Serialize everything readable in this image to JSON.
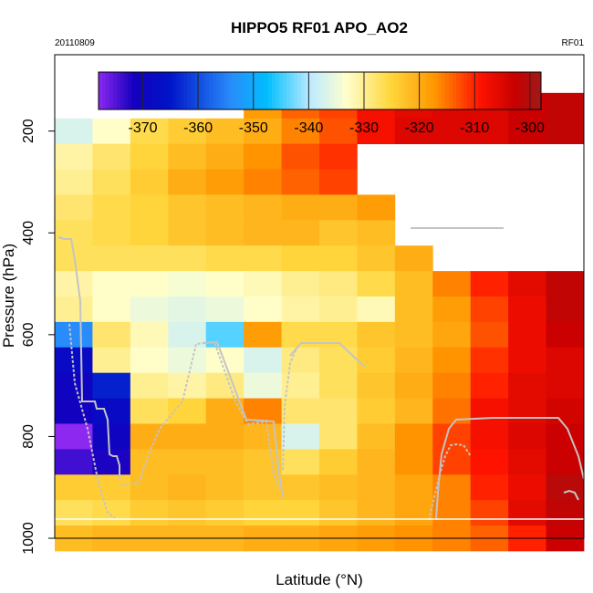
{
  "chart_data": {
    "type": "heatmap",
    "title": "HIPPO5 RF01 APO_AO2",
    "left_note": "20110809",
    "right_note": "RF01",
    "xlabel": "Latitude (°N)",
    "ylabel": "Pressure (hPa)",
    "ylim": [
      1000,
      50
    ],
    "yticks": [
      200,
      400,
      600,
      800,
      1000
    ],
    "colorbar": {
      "range": [
        -378,
        -298
      ],
      "ticks": [
        -370,
        -360,
        -350,
        -340,
        -330,
        -320,
        -310,
        -300
      ],
      "tick_labels": [
        "-370",
        "-360",
        "-350",
        "-340",
        "-330",
        "-320",
        "-310",
        "-300"
      ]
    },
    "pressure_bins": [
      150,
      200,
      250,
      300,
      350,
      400,
      450,
      500,
      550,
      600,
      650,
      700,
      750,
      800,
      850,
      900,
      950,
      1000
    ],
    "columns": 14,
    "values": [
      [
        null,
        null,
        null,
        null,
        null,
        -318,
        -314,
        -312,
        -308,
        -306,
        -305,
        -305,
        -303,
        -302
      ],
      [
        -337,
        -333,
        -326,
        -324,
        -322,
        -320,
        -316,
        -313,
        -308,
        -305,
        -305,
        -305,
        -303,
        -302
      ],
      [
        -331,
        -328,
        -325,
        -322,
        -320,
        -317,
        -313,
        -311,
        null,
        null,
        null,
        null,
        null,
        null
      ],
      [
        -330,
        -327,
        -324,
        -320,
        -318,
        -316,
        -314,
        -312,
        null,
        null,
        null,
        null,
        null,
        null
      ],
      [
        -328,
        -326,
        -325,
        -323,
        -322,
        -321,
        -320,
        -320,
        -318,
        null,
        null,
        null,
        null,
        null
      ],
      [
        -327,
        -326,
        -325,
        -323,
        -322,
        -321,
        -321,
        -323,
        -322,
        null,
        null,
        null,
        null,
        null
      ],
      [
        -327,
        -327,
        -327,
        -327,
        -326,
        -326,
        -325,
        -325,
        -323,
        -320,
        null,
        null,
        null,
        null
      ],
      [
        -331,
        -333,
        -333,
        -334,
        -333,
        -332,
        -330,
        -329,
        -326,
        -322,
        -316,
        -310,
        -306,
        -302
      ],
      [
        -330,
        -333,
        -335,
        -336,
        -335,
        -333,
        -331,
        -330,
        -332,
        -322,
        -318,
        -312,
        -307,
        -302
      ],
      [
        -354,
        -328,
        -332,
        -337,
        -344,
        -318,
        -326,
        -326,
        -323,
        -322,
        -319,
        -313,
        -307,
        -303
      ],
      [
        -368,
        -330,
        -333,
        -335,
        -333,
        -337,
        -329,
        -327,
        -324,
        -321,
        -317,
        -311,
        -307,
        -305
      ],
      [
        -370,
        -364,
        -330,
        -331,
        -329,
        -335,
        -330,
        -327,
        -323,
        -320,
        -316,
        -310,
        -306,
        -305
      ],
      [
        -371,
        -368,
        -327,
        -325,
        -320,
        -316,
        -328,
        -328,
        -324,
        -321,
        -315,
        -308,
        -306,
        -304
      ],
      [
        -378,
        -370,
        -320,
        -320,
        -320,
        -321,
        -337,
        -328,
        -322,
        -317,
        -312,
        -308,
        -305,
        -303
      ],
      [
        -374,
        -372,
        -322,
        -322,
        -322,
        -323,
        -327,
        -324,
        -321,
        -317,
        -312,
        -309,
        -306,
        -303
      ],
      [
        -324,
        -324,
        -322,
        -321,
        -322,
        -323,
        -323,
        -322,
        -321,
        -319,
        -316,
        -310,
        -307,
        -301
      ],
      [
        -327,
        -326,
        -324,
        -323,
        -324,
        -325,
        -325,
        -323,
        -321,
        -319,
        -316,
        -312,
        -306,
        -302
      ],
      [
        -322,
        -321,
        -321,
        -321,
        -321,
        -320,
        -320,
        -319,
        -318,
        -317,
        -316,
        -314,
        -310,
        -303
      ]
    ]
  }
}
